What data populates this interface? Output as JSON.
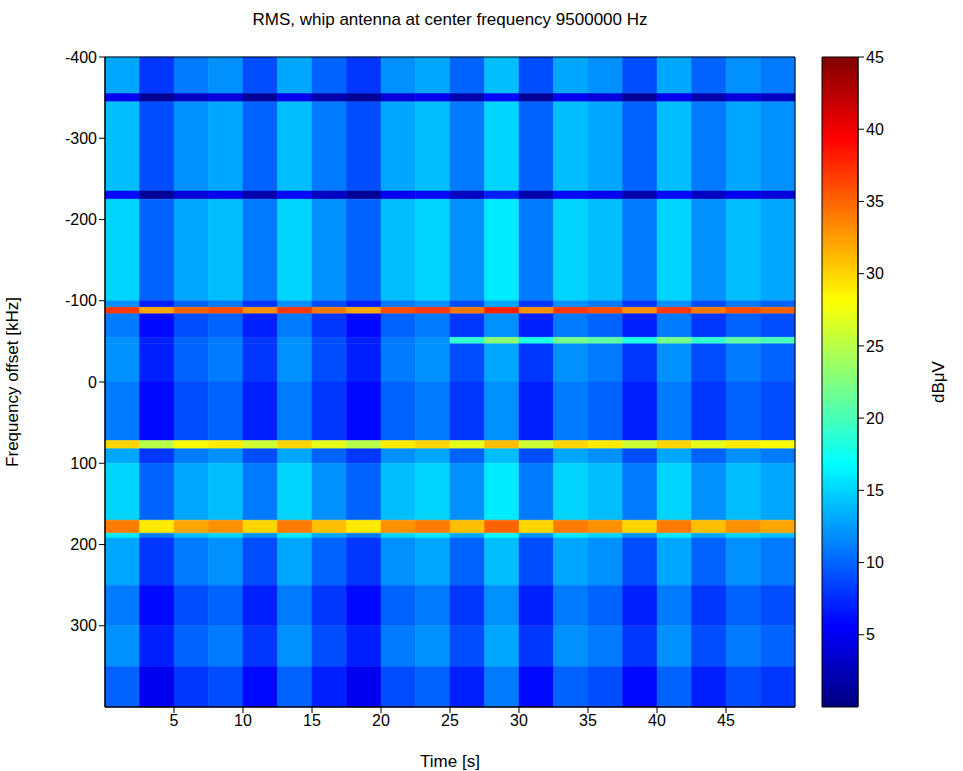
{
  "chart_data": {
    "type": "heatmap",
    "title": "RMS, whip antenna at center frequency 9500000 Hz",
    "x_label": "Time [s]",
    "y_label": "Frequency offset [kHz]",
    "xlim": [
      0,
      50
    ],
    "xticks": [
      5,
      10,
      15,
      20,
      25,
      30,
      35,
      40,
      45
    ],
    "ylim": [
      -400,
      400
    ],
    "yticks": [
      -400,
      -300,
      -200,
      -100,
      0,
      100,
      200,
      300
    ],
    "x_edges": [
      0,
      2.5,
      5,
      7.5,
      10,
      12.5,
      15,
      17.5,
      20,
      22.5,
      25,
      27.5,
      30,
      32.5,
      35,
      37.5,
      40,
      42.5,
      45,
      47.5,
      50
    ],
    "y_edges": [
      -400,
      -355,
      -345,
      -235,
      -225,
      -100,
      -92,
      -84,
      -55,
      -47,
      0,
      72,
      82,
      100,
      170,
      186,
      192,
      250,
      300,
      350,
      400
    ],
    "cells": [
      [
        13,
        8,
        11,
        12,
        9,
        13,
        10,
        8,
        12,
        13,
        10,
        14,
        9,
        13,
        12,
        9,
        13,
        10,
        12,
        11
      ],
      [
        5,
        1,
        3,
        4,
        1,
        5,
        2,
        1,
        4,
        5,
        2,
        6,
        1,
        5,
        4,
        1,
        5,
        2,
        4,
        3
      ],
      [
        14,
        9,
        12,
        13,
        10,
        14,
        11,
        9,
        13,
        14,
        11,
        15,
        10,
        14,
        13,
        10,
        14,
        11,
        13,
        12
      ],
      [
        6,
        1,
        4,
        5,
        2,
        6,
        3,
        1,
        5,
        6,
        3,
        7,
        2,
        6,
        5,
        2,
        6,
        3,
        5,
        4
      ],
      [
        15,
        10,
        13,
        14,
        11,
        15,
        12,
        10,
        14,
        15,
        12,
        16,
        11,
        15,
        14,
        11,
        15,
        12,
        14,
        13
      ],
      [
        12,
        7,
        10,
        11,
        8,
        12,
        9,
        7,
        11,
        12,
        9,
        13,
        8,
        12,
        11,
        8,
        12,
        9,
        11,
        10
      ],
      [
        37,
        32,
        35,
        36,
        33,
        37,
        34,
        32,
        36,
        37,
        34,
        38,
        33,
        37,
        36,
        33,
        37,
        34,
        36,
        35
      ],
      [
        11,
        6,
        9,
        10,
        7,
        11,
        8,
        6,
        10,
        11,
        8,
        12,
        7,
        11,
        10,
        7,
        11,
        8,
        10,
        9
      ],
      [
        12,
        7,
        10,
        11,
        8,
        12,
        9,
        7,
        11,
        12,
        19,
        23,
        18,
        22,
        21,
        18,
        22,
        19,
        21,
        20
      ],
      [
        12,
        7,
        10,
        11,
        8,
        12,
        9,
        7,
        11,
        12,
        9,
        13,
        8,
        12,
        11,
        8,
        12,
        9,
        11,
        10
      ],
      [
        11,
        6,
        9,
        10,
        7,
        11,
        8,
        6,
        10,
        11,
        8,
        12,
        7,
        11,
        10,
        7,
        11,
        8,
        10,
        9
      ],
      [
        30,
        25,
        28,
        29,
        26,
        30,
        27,
        25,
        29,
        30,
        27,
        31,
        26,
        30,
        29,
        26,
        30,
        27,
        29,
        28
      ],
      [
        13,
        8,
        11,
        12,
        9,
        13,
        10,
        8,
        12,
        13,
        10,
        14,
        9,
        13,
        12,
        9,
        13,
        10,
        12,
        11
      ],
      [
        15,
        10,
        13,
        14,
        11,
        15,
        12,
        10,
        14,
        15,
        12,
        16,
        11,
        15,
        14,
        11,
        15,
        12,
        14,
        13
      ],
      [
        34,
        29,
        32,
        33,
        30,
        34,
        31,
        29,
        33,
        34,
        31,
        35,
        30,
        34,
        33,
        30,
        34,
        31,
        33,
        32
      ],
      [
        16,
        11,
        14,
        15,
        12,
        16,
        13,
        11,
        15,
        16,
        13,
        17,
        12,
        16,
        15,
        12,
        16,
        13,
        15,
        14
      ],
      [
        13,
        8,
        11,
        12,
        9,
        13,
        10,
        8,
        12,
        13,
        10,
        14,
        9,
        13,
        12,
        9,
        13,
        10,
        12,
        11
      ],
      [
        11,
        6,
        9,
        10,
        7,
        11,
        8,
        6,
        10,
        11,
        8,
        12,
        7,
        11,
        10,
        7,
        11,
        8,
        10,
        9
      ],
      [
        12,
        7,
        10,
        11,
        8,
        12,
        9,
        7,
        11,
        12,
        9,
        13,
        8,
        12,
        11,
        8,
        12,
        9,
        11,
        10
      ],
      [
        10,
        5,
        8,
        9,
        6,
        10,
        7,
        5,
        9,
        10,
        7,
        11,
        6,
        10,
        9,
        6,
        10,
        7,
        9,
        8
      ]
    ],
    "colorbar": {
      "label": "dBμV",
      "range": [
        0,
        45
      ],
      "ticks": [
        5,
        10,
        15,
        20,
        25,
        30,
        35,
        40,
        45
      ]
    }
  }
}
